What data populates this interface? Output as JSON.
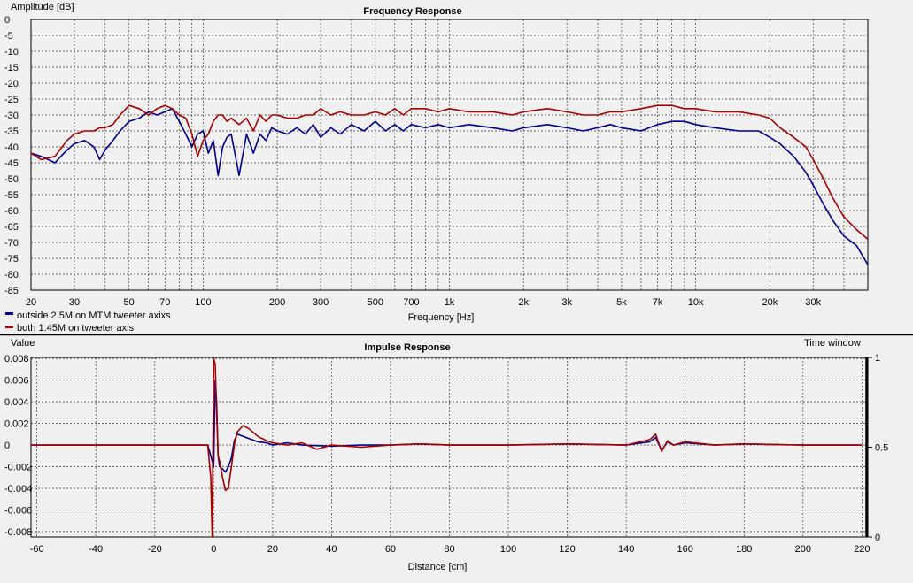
{
  "chart_data": [
    {
      "type": "line",
      "title": "Frequency Response",
      "ylabel": "Amplitude [dB]",
      "xlabel": "Frequency [Hz]",
      "xscale": "log",
      "xlim": [
        20,
        50000
      ],
      "ylim": [
        -85,
        0
      ],
      "yticks": [
        "0",
        "-5",
        "-10",
        "-15",
        "-20",
        "-25",
        "-30",
        "-35",
        "-40",
        "-45",
        "-50",
        "-55",
        "-60",
        "-65",
        "-70",
        "-75",
        "-80",
        "-85"
      ],
      "xticks": [
        {
          "v": 20,
          "label": "20"
        },
        {
          "v": 30,
          "label": "30"
        },
        {
          "v": 50,
          "label": "50"
        },
        {
          "v": 70,
          "label": "70"
        },
        {
          "v": 100,
          "label": "100"
        },
        {
          "v": 200,
          "label": "200"
        },
        {
          "v": 300,
          "label": "300"
        },
        {
          "v": 500,
          "label": "500"
        },
        {
          "v": 700,
          "label": "700"
        },
        {
          "v": 1000,
          "label": "1k"
        },
        {
          "v": 2000,
          "label": "2k"
        },
        {
          "v": 3000,
          "label": "3k"
        },
        {
          "v": 5000,
          "label": "5k"
        },
        {
          "v": 7000,
          "label": "7k"
        },
        {
          "v": 10000,
          "label": "10k"
        },
        {
          "v": 20000,
          "label": "20k"
        },
        {
          "v": 30000,
          "label": "30k"
        }
      ],
      "grid": true,
      "legend": "bottom-left",
      "series": [
        {
          "name": "outside 2.5M on MTM tweeter axixs",
          "color": "#00008b",
          "x": [
            20,
            22,
            25,
            28,
            30,
            33,
            36,
            38,
            40,
            43,
            46,
            50,
            55,
            60,
            65,
            70,
            75,
            80,
            85,
            90,
            95,
            100,
            105,
            110,
            115,
            120,
            125,
            130,
            140,
            150,
            160,
            170,
            180,
            190,
            200,
            220,
            240,
            260,
            280,
            300,
            330,
            360,
            400,
            450,
            500,
            550,
            600,
            650,
            700,
            800,
            900,
            1000,
            1200,
            1500,
            1800,
            2000,
            2500,
            3000,
            3500,
            4000,
            4500,
            5000,
            6000,
            7000,
            8000,
            9000,
            10000,
            12000,
            15000,
            18000,
            20000,
            22000,
            25000,
            28000,
            30000,
            33000,
            36000,
            40000,
            45000,
            50000
          ],
          "y": [
            -42,
            -43,
            -45,
            -41,
            -39,
            -38,
            -40,
            -44,
            -41,
            -38,
            -35,
            -32,
            -31,
            -29,
            -30,
            -29,
            -28,
            -32,
            -36,
            -40,
            -36,
            -35,
            -42,
            -38,
            -49,
            -40,
            -37,
            -36,
            -49,
            -36,
            -42,
            -36,
            -38,
            -34,
            -35,
            -36,
            -34,
            -36,
            -33,
            -37,
            -34,
            -36,
            -33,
            -35,
            -32,
            -35,
            -33,
            -35,
            -33,
            -34,
            -33,
            -34,
            -33,
            -34,
            -35,
            -34,
            -33,
            -34,
            -35,
            -34,
            -33,
            -34,
            -35,
            -33,
            -32,
            -32,
            -33,
            -34,
            -35,
            -35,
            -37,
            -39,
            -43,
            -48,
            -52,
            -58,
            -63,
            -68,
            -71,
            -77
          ]
        },
        {
          "name": "both 1.45M on tweeter axis",
          "color": "#a50000",
          "x": [
            20,
            22,
            25,
            28,
            30,
            33,
            36,
            38,
            40,
            43,
            46,
            50,
            55,
            60,
            65,
            70,
            75,
            80,
            85,
            90,
            95,
            100,
            105,
            110,
            115,
            120,
            125,
            130,
            140,
            150,
            160,
            170,
            180,
            190,
            200,
            220,
            240,
            260,
            280,
            300,
            330,
            360,
            400,
            450,
            500,
            550,
            600,
            650,
            700,
            800,
            900,
            1000,
            1200,
            1500,
            1800,
            2000,
            2500,
            3000,
            3500,
            4000,
            4500,
            5000,
            6000,
            7000,
            8000,
            9000,
            10000,
            12000,
            15000,
            18000,
            20000,
            22000,
            25000,
            28000,
            30000,
            33000,
            36000,
            40000,
            45000,
            50000
          ],
          "y": [
            -42,
            -44,
            -43,
            -38,
            -36,
            -35,
            -35,
            -34,
            -34,
            -33,
            -30,
            -27,
            -28,
            -30,
            -28,
            -27,
            -28,
            -30,
            -31,
            -36,
            -43,
            -38,
            -36,
            -32,
            -30,
            -30,
            -32,
            -31,
            -33,
            -31,
            -35,
            -30,
            -32,
            -30,
            -30,
            -31,
            -31,
            -30,
            -30,
            -28,
            -30,
            -29,
            -30,
            -30,
            -29,
            -30,
            -28,
            -30,
            -28,
            -28,
            -29,
            -28,
            -29,
            -29,
            -30,
            -29,
            -28,
            -29,
            -30,
            -30,
            -29,
            -29,
            -28,
            -27,
            -27,
            -28,
            -28,
            -29,
            -29,
            -30,
            -31,
            -34,
            -37,
            -40,
            -44,
            -50,
            -56,
            -62,
            -66,
            -69
          ]
        }
      ]
    },
    {
      "type": "line",
      "title": "Impulse Response",
      "ylabel": "Value",
      "xlabel": "Distance [cm]",
      "xlim": [
        -62,
        222
      ],
      "ylim": [
        -0.0085,
        0.0081
      ],
      "yticks": [
        {
          "v": 0.008,
          "label": "0.008"
        },
        {
          "v": 0.006,
          "label": "0.006"
        },
        {
          "v": 0.004,
          "label": "0.004"
        },
        {
          "v": 0.002,
          "label": "0.002"
        },
        {
          "v": 0,
          "label": "0"
        },
        {
          "v": -0.002,
          "label": "-0.002"
        },
        {
          "v": -0.004,
          "label": "-0.004"
        },
        {
          "v": -0.006,
          "label": "-0.006"
        },
        {
          "v": -0.008,
          "label": "-0.008"
        }
      ],
      "xticks": [
        -60,
        -40,
        -20,
        0,
        20,
        40,
        60,
        80,
        100,
        120,
        140,
        160,
        180,
        200,
        220
      ],
      "y2label": "Time window",
      "y2ticks": [
        {
          "v": 1,
          "label": "1"
        },
        {
          "v": 0.5,
          "label": "0.5"
        },
        {
          "v": 0,
          "label": "0"
        }
      ],
      "grid": true,
      "series": [
        {
          "name": "outside 2.5M on MTM tweeter axixs",
          "color": "#00008b",
          "x": [
            -62,
            -2,
            -1,
            0,
            0.5,
            1,
            1.5,
            2,
            3,
            4,
            5,
            6,
            7,
            8,
            10,
            12,
            15,
            18,
            20,
            25,
            30,
            40,
            50,
            60,
            70,
            80,
            100,
            120,
            140,
            148,
            150,
            152,
            154,
            156,
            160,
            170,
            180,
            200,
            220
          ],
          "y": [
            0,
            0,
            -0.001,
            -0.002,
            0.006,
            0.004,
            -0.001,
            -0.002,
            -0.0022,
            -0.0025,
            -0.002,
            -0.0012,
            0.0004,
            0.001,
            0.0008,
            0.0006,
            0.0003,
            0.0002,
            0,
            0.0002,
            0,
            -0.0001,
            0,
            0,
            0.0001,
            0,
            0,
            0.0001,
            0,
            0.0003,
            0.0007,
            -0.0005,
            0.0003,
            0,
            0.0002,
            0,
            0.0001,
            0,
            0
          ]
        },
        {
          "name": "both 1.45M on tweeter axis",
          "color": "#a50000",
          "x": [
            -62,
            -2,
            -1,
            -0.5,
            0,
            0.5,
            1,
            1.5,
            2,
            3,
            4,
            5,
            6,
            7,
            8,
            10,
            12,
            15,
            18,
            20,
            25,
            30,
            35,
            40,
            50,
            60,
            70,
            80,
            100,
            120,
            140,
            148,
            150,
            152,
            154,
            156,
            160,
            170,
            180,
            200,
            220
          ],
          "y": [
            0,
            0,
            -0.003,
            -0.0085,
            0.008,
            0.0075,
            0.003,
            -0.001,
            -0.0015,
            -0.003,
            -0.0042,
            -0.004,
            -0.002,
            0,
            0.0012,
            0.0018,
            0.0015,
            0.0008,
            0.0004,
            0.0002,
            0,
            0.0002,
            -0.0004,
            0,
            -0.0002,
            0,
            0.0001,
            0,
            0,
            0.0001,
            0,
            0.0005,
            0.001,
            -0.0006,
            0.0004,
            0,
            0.0003,
            0,
            0.0001,
            0,
            0
          ]
        }
      ]
    }
  ]
}
